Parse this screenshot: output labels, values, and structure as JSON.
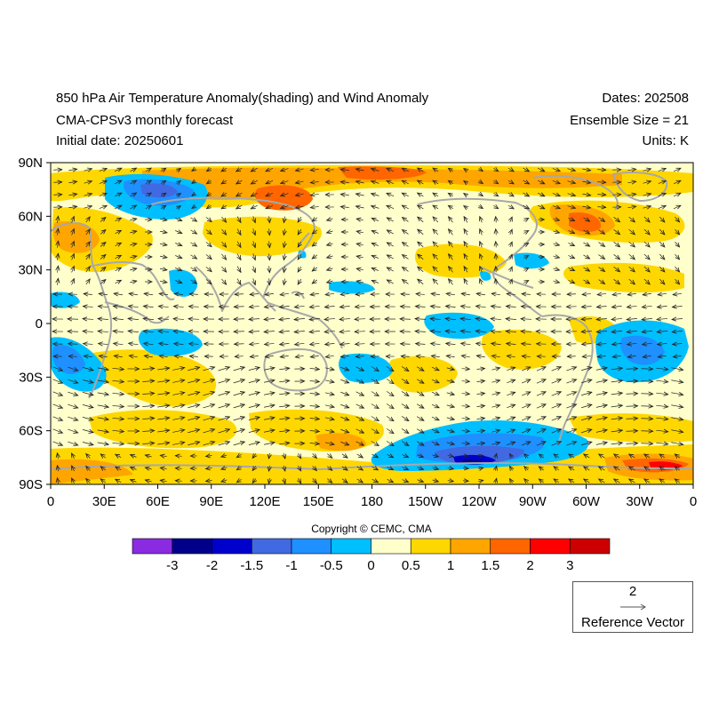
{
  "header": {
    "title": "850 hPa Air Temperature Anomaly(shading) and Wind Anomaly",
    "model": "CMA-CPSv3 monthly forecast",
    "initial_date": "Initial date: 20250601",
    "dates": "Dates: 202508",
    "ensemble": "Ensemble Size = 21",
    "units": "Units: K"
  },
  "axes": {
    "lat_labels": [
      "90N",
      "60N",
      "30N",
      "0",
      "30S",
      "60S",
      "90S"
    ],
    "lon_labels": [
      "0",
      "30E",
      "60E",
      "90E",
      "120E",
      "150E",
      "180",
      "150W",
      "120W",
      "90W",
      "60W",
      "30W",
      "0"
    ]
  },
  "copyright": "Copyright © CEMC, CMA",
  "colorbar": {
    "labels": [
      "-3",
      "-2",
      "-1.5",
      "-1",
      "-0.5",
      "0",
      "0.5",
      "1",
      "1.5",
      "2",
      "3"
    ],
    "colors": [
      "#8a2be2",
      "#00008b",
      "#0000cd",
      "#4169e1",
      "#1e90ff",
      "#00bfff",
      "#ffffcc",
      "#ffd700",
      "#ffa500",
      "#ff6600",
      "#ff0000",
      "#cc0000"
    ]
  },
  "reference_vector": {
    "magnitude": "2",
    "label": "Reference Vector"
  },
  "palette": {
    "coast": "#a8a8a8",
    "vector": "#222222"
  }
}
